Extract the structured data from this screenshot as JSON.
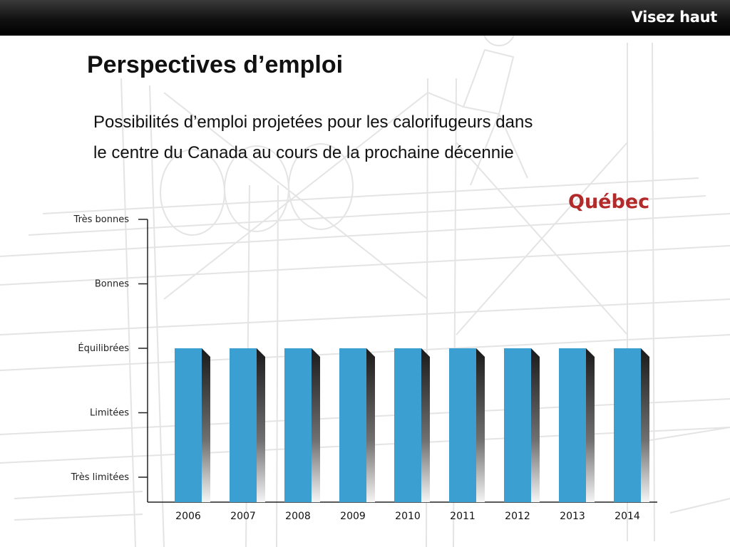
{
  "header": {
    "brand": "Visez haut"
  },
  "slide": {
    "title": "Perspectives d’emploi",
    "subtitle_line1": "Possibilités d’emploi projetées pour les calorifugeurs dans",
    "subtitle_line2": "le centre du Canada au cours de la prochaine décennie",
    "region": "Québec"
  },
  "colors": {
    "bar": "#3b9fd1",
    "region_label": "#b22a2a",
    "header_bg": "#000000"
  },
  "chart_data": {
    "type": "bar",
    "title": "",
    "xlabel": "",
    "ylabel": "",
    "categories": [
      "2006",
      "2007",
      "2008",
      "2009",
      "2010",
      "2011",
      "2012",
      "2013",
      "2014"
    ],
    "values": [
      3,
      3,
      3,
      3,
      3,
      3,
      3,
      3,
      3
    ],
    "y_levels": [
      "Très limitées",
      "Limitées",
      "Équilibrées",
      "Bonnes",
      "Très bonnes"
    ],
    "y_level_values": [
      1,
      2,
      3,
      4,
      5
    ],
    "ylim": [
      1,
      5
    ],
    "grid": false,
    "legend": "none"
  }
}
